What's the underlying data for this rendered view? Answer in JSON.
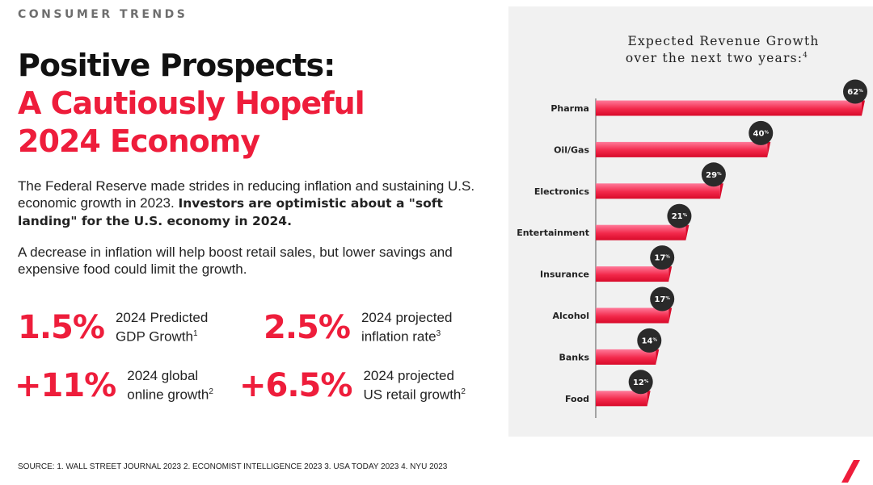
{
  "eyebrow": "CONSUMER TRENDS",
  "headline": {
    "line1": "Positive Prospects:",
    "line2": "A Cautiously Hopeful",
    "line3": "2024 Economy"
  },
  "paragraph1": {
    "plain": "The Federal Reserve made strides in reducing inflation and sustaining U.S. economic growth in 2023.",
    "bold": "Investors are optimistic about a \"soft landing\" for the U.S. economy in 2024."
  },
  "paragraph2": "A decrease in inflation will help boost retail sales, but lower savings and expensive food could limit the growth.",
  "stats": [
    {
      "value": "1.5%",
      "line1": "2024 Predicted",
      "line2": "GDP Growth",
      "sup": "1"
    },
    {
      "value": "2.5%",
      "line1": "2024 projected",
      "line2": "inflation rate",
      "sup": "3"
    },
    {
      "value": "+11%",
      "line1": "2024 global",
      "line2": "online growth",
      "sup": "2"
    },
    {
      "value": "+6.5%",
      "line1": "2024 projected",
      "line2": "US retail growth",
      "sup": "2"
    }
  ],
  "source": "SOURCE: 1. WALL STREET JOURNAL 2023  2. ECONOMIST INTELLIGENCE 2023  3. USA TODAY 2023  4. NYU 2023",
  "colors": {
    "accent": "#ee1d3b",
    "bar_dark": "#e0102e",
    "bar_light": "#ff7a9a",
    "badge": "#2a2a2a",
    "panel": "#f1f1f1"
  },
  "chart_data": {
    "type": "bar",
    "orientation": "horizontal",
    "title_line1": "Expected Revenue Growth",
    "title_line2": "over the next two years:",
    "title_sup": "4",
    "value_suffix": "%",
    "categories": [
      "Pharma",
      "Oil/Gas",
      "Electronics",
      "Entertainment",
      "Insurance",
      "Alcohol",
      "Banks",
      "Food"
    ],
    "values": [
      62,
      40,
      29,
      21,
      17,
      17,
      14,
      12
    ],
    "xlim": [
      0,
      62
    ],
    "grid": false,
    "legend": "none"
  }
}
